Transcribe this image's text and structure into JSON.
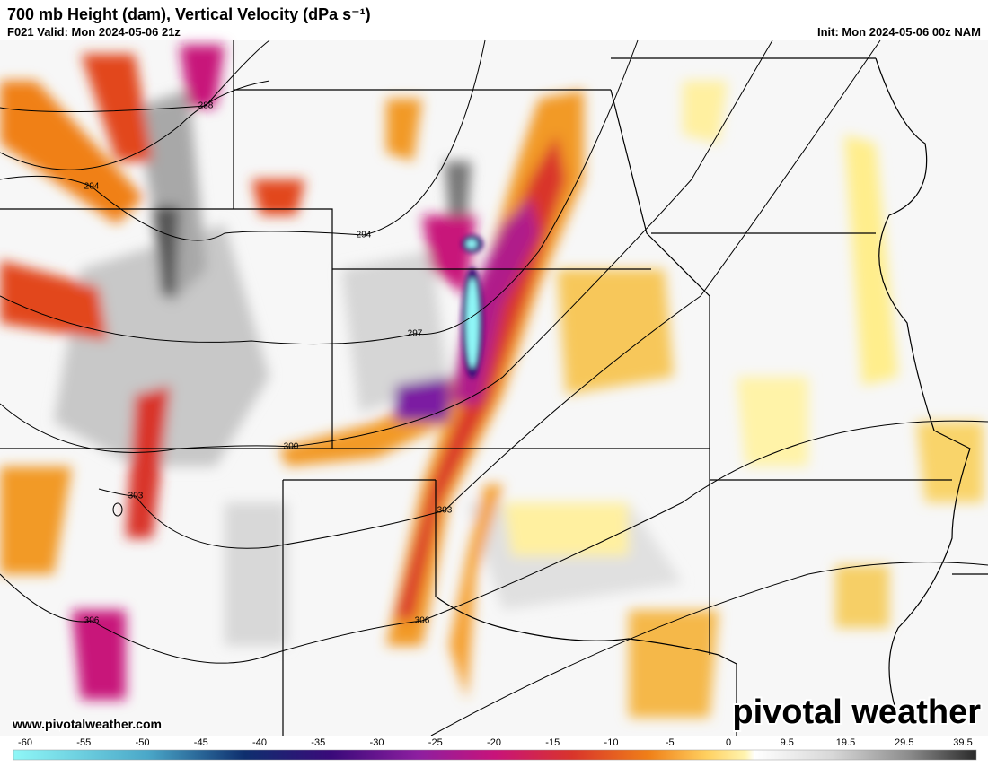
{
  "header": {
    "title": "700 mb Height (dam), Vertical Velocity (dPa s⁻¹)",
    "valid": "F021 Valid: Mon 2024-05-06 21z",
    "init": "Init: Mon 2024-05-06 00z NAM"
  },
  "map": {
    "contour_labels": [
      288,
      294,
      294,
      297,
      300,
      303,
      303,
      306,
      306
    ]
  },
  "footer": {
    "website": "www.pivotalweather.com",
    "logo": "pivotal weather"
  },
  "colorbar": {
    "ticks": [
      -60,
      -55,
      -50,
      -45,
      -40,
      -35,
      -30,
      -25,
      -20,
      -15,
      -10,
      -5,
      0,
      9.5,
      19.5,
      29.5,
      39.5
    ]
  }
}
